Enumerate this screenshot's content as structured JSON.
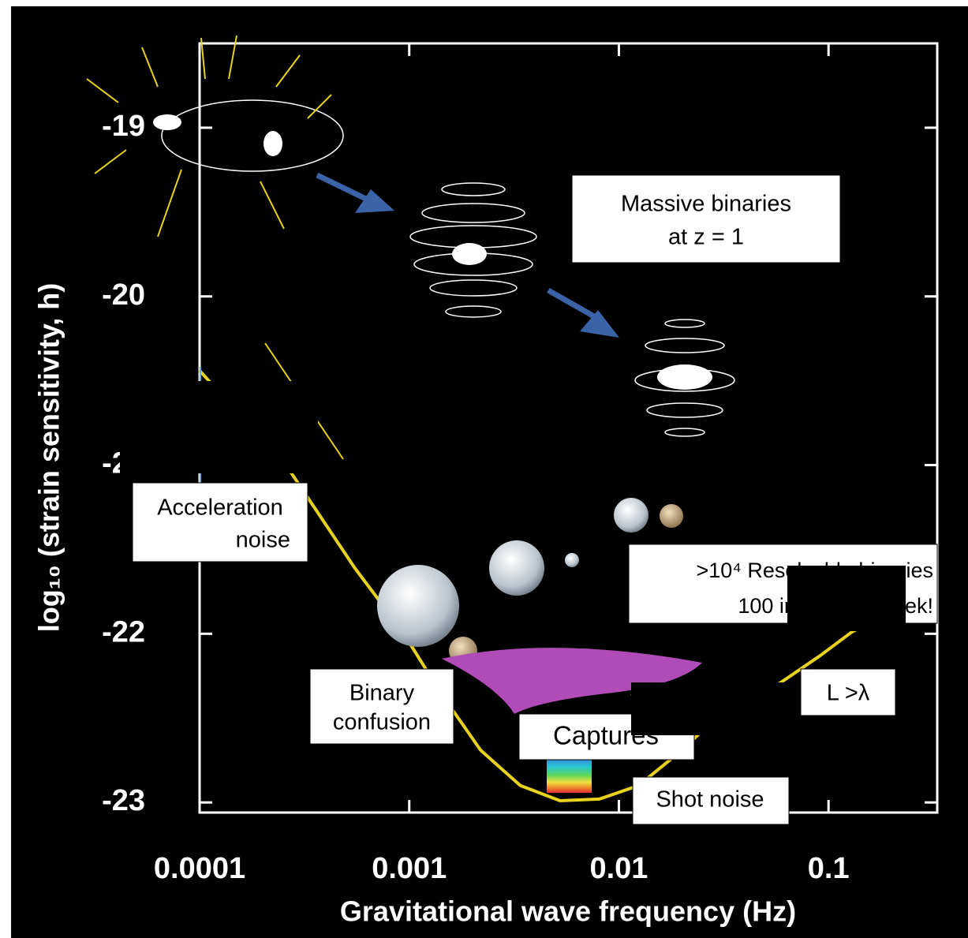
{
  "chart_data": {
    "type": "line",
    "x_label": "Gravitational wave frequency (Hz)",
    "y_label": "log₁₀ (strain sensitivity, h)",
    "x_log": true,
    "x": [
      0.0001,
      0.00015,
      0.000275,
      0.00055,
      0.00092,
      0.00143,
      0.00219,
      0.00339,
      0.00524,
      0.00806,
      0.0124,
      0.0191,
      0.0322,
      0.059,
      0.0911,
      0.129,
      0.182,
      0.236
    ],
    "values": [
      -20.44,
      -20.68,
      -21.05,
      -21.61,
      -21.98,
      -22.36,
      -22.69,
      -22.9,
      -22.99,
      -22.98,
      -22.9,
      -22.71,
      -22.45,
      -22.29,
      -22.13,
      -21.99,
      -21.89,
      -21.8
    ],
    "color": "#e8d21d",
    "xlim": [
      0.0001,
      0.33
    ],
    "ylim": [
      -23.06,
      -18.5
    ],
    "xticks": [
      0.0001,
      0.001,
      0.01,
      0.1
    ],
    "yticks": [
      -23,
      -22,
      -21,
      -20,
      -19
    ],
    "annotations": [
      {
        "lines": [
          "Massive binaries",
          "at z = 1"
        ]
      },
      {
        "lines": [
          "Acceleration",
          "noise"
        ]
      },
      {
        "lines": [
          "Binary",
          "confusion"
        ]
      },
      {
        "lines": [
          "Captures"
        ]
      },
      {
        "lines": [
          "Shot noise"
        ]
      },
      {
        "lines": [
          ">10⁴ Resolvable binaries",
          "100 in the first week!"
        ]
      },
      {
        "lines": [
          "L >λ"
        ]
      }
    ]
  }
}
